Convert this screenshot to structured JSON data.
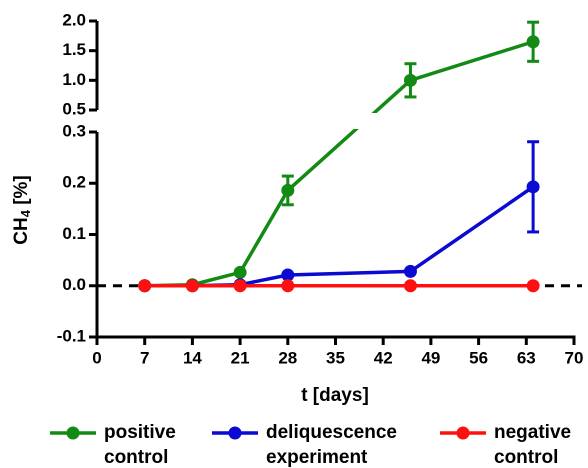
{
  "chart_data": {
    "type": "line",
    "ylabel": {
      "text": "CH",
      "subscript": "4",
      "suffix": " [%]"
    },
    "xlabel": "t [days]",
    "xlim": [
      0,
      70
    ],
    "xticks": [
      0,
      7,
      14,
      21,
      28,
      35,
      42,
      49,
      56,
      63,
      70
    ],
    "y_segments": [
      {
        "ylim": [
          -0.1,
          0.3
        ],
        "yticks": [
          -0.1,
          {
            "value": 0,
            "label": "0.0"
          },
          0.1,
          0.2,
          0.3
        ]
      },
      {
        "ylim": [
          0.5,
          2.0
        ],
        "yticks": [
          0.5,
          {
            "value": 1.0,
            "label": "1.0"
          },
          1.5,
          {
            "value": 2.0,
            "label": "2.0"
          }
        ]
      }
    ],
    "zero_line": "dashed",
    "legend": "bottom",
    "series": [
      {
        "name": "positive control",
        "color": "#138a13",
        "x": [
          7,
          14,
          21,
          28,
          46,
          64
        ],
        "values": [
          0,
          0.002,
          0.026,
          0.186,
          1.0,
          1.65
        ],
        "errors": [
          null,
          null,
          null,
          0.028,
          0.28,
          0.33
        ]
      },
      {
        "name": "deliquescence experiment",
        "color": "#0a0ad0",
        "x": [
          7,
          14,
          21,
          28,
          46,
          64
        ],
        "values": [
          0,
          0,
          0.002,
          0.021,
          0.028,
          0.193
        ],
        "errors": [
          null,
          null,
          null,
          null,
          null,
          0.088
        ]
      },
      {
        "name": "negative control",
        "color": "#ff1010",
        "x": [
          7,
          14,
          21,
          28,
          46,
          64
        ],
        "values": [
          0,
          0,
          0,
          0,
          0,
          0
        ],
        "errors": [
          null,
          null,
          null,
          null,
          null,
          null
        ]
      }
    ]
  }
}
